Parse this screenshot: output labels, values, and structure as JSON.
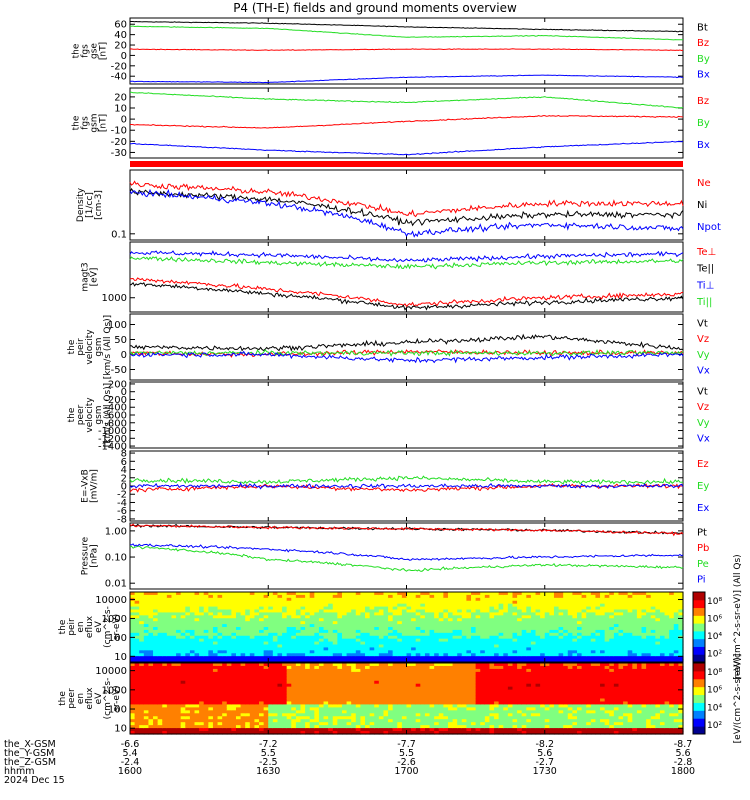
{
  "title": "P4 (TH-E) fields and ground moments overview",
  "colors": {
    "black": "#000000",
    "red": "#ff0000",
    "green": "#22dd22",
    "blue": "#0000ff"
  },
  "chart_data": [
    {
      "type": "line",
      "ylabel": [
        "the",
        "fgs",
        "gse",
        "[nT]"
      ],
      "ylim": [
        -55,
        72
      ],
      "yticks": [
        "60",
        "40",
        "20",
        "0",
        "-20",
        "-40"
      ],
      "series": [
        {
          "name": "Bt",
          "color": "#000000",
          "x": [
            1600,
            1630,
            1700,
            1730,
            1800
          ],
          "values": [
            65,
            62,
            55,
            50,
            46
          ]
        },
        {
          "name": "Bz",
          "color": "#ff0000",
          "x": [
            1600,
            1630,
            1700,
            1730,
            1800
          ],
          "values": [
            12,
            10,
            12,
            12,
            10
          ]
        },
        {
          "name": "By",
          "color": "#22dd22",
          "x": [
            1600,
            1630,
            1700,
            1730,
            1800
          ],
          "values": [
            56,
            52,
            35,
            38,
            30
          ]
        },
        {
          "name": "Bx",
          "color": "#0000ff",
          "x": [
            1600,
            1630,
            1700,
            1730,
            1800
          ],
          "values": [
            -50,
            -52,
            -42,
            -38,
            -42
          ]
        }
      ]
    },
    {
      "type": "line",
      "ylabel": [
        "the",
        "fgs",
        "gsm",
        "[nT]"
      ],
      "ylim": [
        -35,
        28
      ],
      "yticks": [
        "20",
        "10",
        "0",
        "-10",
        "-20",
        "-30"
      ],
      "series": [
        {
          "name": "Bz",
          "color": "#ff0000",
          "x": [
            1600,
            1630,
            1700,
            1730,
            1800
          ],
          "values": [
            -5,
            -8,
            -2,
            3,
            2
          ]
        },
        {
          "name": "By",
          "color": "#22dd22",
          "x": [
            1600,
            1630,
            1700,
            1730,
            1800
          ],
          "values": [
            24,
            18,
            15,
            20,
            10
          ]
        },
        {
          "name": "Bx",
          "color": "#0000ff",
          "x": [
            1600,
            1630,
            1700,
            1730,
            1800
          ],
          "values": [
            -22,
            -28,
            -32,
            -25,
            -20
          ]
        }
      ]
    },
    {
      "type": "line",
      "ylabel": [
        "Density",
        "[1/cc]",
        "[cm-3]"
      ],
      "yscale": "log",
      "ylim": [
        0.08,
        1.0
      ],
      "yticks": [
        "0.1"
      ],
      "series": [
        {
          "name": "Ne",
          "color": "#ff0000",
          "x": [
            1600,
            1630,
            1700,
            1730,
            1800
          ],
          "values": [
            0.6,
            0.45,
            0.2,
            0.3,
            0.3
          ]
        },
        {
          "name": "Ni",
          "color": "#000000",
          "x": [
            1600,
            1630,
            1700,
            1730,
            1800
          ],
          "values": [
            0.45,
            0.35,
            0.15,
            0.2,
            0.2
          ]
        },
        {
          "name": "Npot",
          "color": "#0000ff",
          "x": [
            1600,
            1630,
            1700,
            1730,
            1800
          ],
          "values": [
            0.45,
            0.3,
            0.1,
            0.14,
            0.12
          ]
        }
      ]
    },
    {
      "type": "line",
      "ylabel": [
        "magt3",
        "[eV]"
      ],
      "yscale": "log",
      "ylim": [
        500,
        15000
      ],
      "yticks": [
        "1000"
      ],
      "series": [
        {
          "name": "Te⊥",
          "color": "#ff0000",
          "x": [
            1600,
            1630,
            1700,
            1730,
            1800
          ],
          "values": [
            2500,
            1500,
            700,
            1000,
            1200
          ]
        },
        {
          "name": "Te||",
          "color": "#000000",
          "x": [
            1600,
            1630,
            1700,
            1730,
            1800
          ],
          "values": [
            2000,
            1200,
            600,
            800,
            1000
          ]
        },
        {
          "name": "Ti⊥",
          "color": "#0000ff",
          "x": [
            1600,
            1630,
            1700,
            1730,
            1800
          ],
          "values": [
            9000,
            8000,
            6000,
            7500,
            8500
          ]
        },
        {
          "name": "Ti||",
          "color": "#22dd22",
          "x": [
            1600,
            1630,
            1700,
            1730,
            1800
          ],
          "values": [
            7000,
            5500,
            4500,
            5500,
            6000
          ]
        }
      ]
    },
    {
      "type": "line",
      "ylabel": [
        "the",
        "peir",
        "velocity",
        "gsm",
        "[km/s (All Qs)]"
      ],
      "ylim": [
        -85,
        135
      ],
      "yticks": [
        "100",
        "50",
        "0",
        "-50"
      ],
      "series": [
        {
          "name": "Vt",
          "color": "#000000",
          "x": [
            1600,
            1630,
            1700,
            1730,
            1800
          ],
          "values": [
            25,
            20,
            40,
            60,
            20
          ]
        },
        {
          "name": "Vz",
          "color": "#ff0000",
          "x": [
            1600,
            1630,
            1700,
            1730,
            1800
          ],
          "values": [
            5,
            0,
            10,
            5,
            5
          ]
        },
        {
          "name": "Vy",
          "color": "#22dd22",
          "x": [
            1600,
            1630,
            1700,
            1730,
            1800
          ],
          "values": [
            5,
            5,
            5,
            5,
            5
          ]
        },
        {
          "name": "Vx",
          "color": "#0000ff",
          "x": [
            1600,
            1630,
            1700,
            1730,
            1800
          ],
          "values": [
            0,
            0,
            -20,
            -10,
            0
          ]
        }
      ]
    },
    {
      "type": "line",
      "ylabel": [
        "the",
        "peer",
        "velocity",
        "gsm",
        "[km/s (All Qs)]"
      ],
      "ylim": [
        -1450,
        250
      ],
      "yticks": [
        "200",
        "0",
        "-200",
        "-400",
        "-600",
        "-800",
        "-1000",
        "-1200",
        "-1400"
      ],
      "series": [
        {
          "name": "Vt",
          "color": "#000000",
          "x": [],
          "values": []
        },
        {
          "name": "Vz",
          "color": "#ff0000",
          "x": [],
          "values": []
        },
        {
          "name": "Vy",
          "color": "#22dd22",
          "x": [],
          "values": []
        },
        {
          "name": "Vx",
          "color": "#0000ff",
          "x": [],
          "values": []
        }
      ]
    },
    {
      "type": "line",
      "ylabel": [
        "E=-VxB",
        "[mV/m]"
      ],
      "ylim": [
        -8.5,
        8.5
      ],
      "yticks": [
        "8",
        "6",
        "4",
        "2",
        "0",
        "-2",
        "-4",
        "-6",
        "-8"
      ],
      "series": [
        {
          "name": "Ez",
          "color": "#ff0000",
          "x": [
            1600,
            1630,
            1700,
            1730,
            1800
          ],
          "values": [
            -1,
            0,
            -1,
            0,
            0
          ]
        },
        {
          "name": "Ey",
          "color": "#22dd22",
          "x": [
            1600,
            1630,
            1700,
            1730,
            1800
          ],
          "values": [
            1.5,
            1,
            2,
            1,
            1
          ]
        },
        {
          "name": "Ex",
          "color": "#0000ff",
          "x": [
            1600,
            1630,
            1700,
            1730,
            1800
          ],
          "values": [
            0,
            0,
            0,
            0,
            0
          ]
        }
      ]
    },
    {
      "type": "line",
      "ylabel": [
        "Pressure",
        "[nPa]"
      ],
      "yscale": "log",
      "ylim": [
        0.006,
        2.0
      ],
      "yticks": [
        "1.00",
        "0.10",
        "0.01"
      ],
      "series": [
        {
          "name": "Pt",
          "color": "#000000",
          "x": [
            1600,
            1630,
            1700,
            1730,
            1800
          ],
          "values": [
            1.6,
            1.35,
            1.2,
            1.05,
            0.8
          ]
        },
        {
          "name": "Pb",
          "color": "#ff0000",
          "x": [
            1600,
            1630,
            1700,
            1730,
            1800
          ],
          "values": [
            1.6,
            1.35,
            1.2,
            1.05,
            0.78
          ]
        },
        {
          "name": "Pe",
          "color": "#22dd22",
          "x": [
            1600,
            1630,
            1700,
            1730,
            1800
          ],
          "values": [
            0.25,
            0.08,
            0.03,
            0.05,
            0.04
          ]
        },
        {
          "name": "Pi",
          "color": "#0000ff",
          "x": [
            1600,
            1630,
            1700,
            1730,
            1800
          ],
          "values": [
            0.3,
            0.2,
            0.08,
            0.1,
            0.12
          ]
        }
      ]
    },
    {
      "type": "heatmap",
      "ylabel": [
        "the",
        "peir",
        "en",
        "eflux",
        "eV",
        "(cm^2-s-",
        "sr-eV)"
      ],
      "yscale": "log",
      "ylim": [
        5,
        25000
      ],
      "yticks": [
        "10000",
        "1000",
        "100",
        "10"
      ],
      "colorbar": {
        "label": "[eV/(cm^2-s-sr-eV)] (All Qs)",
        "ticks": [
          "10⁸",
          "10⁶",
          "10⁴",
          "10²"
        ]
      }
    },
    {
      "type": "heatmap",
      "ylabel": [
        "the",
        "peer",
        "en",
        "eflux",
        "eV",
        "(cm^2-s-",
        "sr-eV)"
      ],
      "yscale": "log",
      "ylim": [
        5,
        25000
      ],
      "yticks": [
        "10000",
        "1000",
        "100",
        "10"
      ],
      "colorbar": {
        "label": "[eV/(cm^2-s-sr-eV)]",
        "ticks": [
          "10⁸",
          "10⁶",
          "10⁴",
          "10²"
        ]
      }
    }
  ],
  "xaxis": {
    "rows": [
      {
        "label": "the_X-GSM",
        "values": [
          "-6.6",
          "-7.2",
          "-7.7",
          "-8.2",
          "-8.7"
        ]
      },
      {
        "label": "the_Y-GSM",
        "values": [
          "5.4",
          "5.5",
          "5.5",
          "5.6",
          "5.6"
        ]
      },
      {
        "label": "the_Z-GSM",
        "values": [
          "-2.4",
          "-2.5",
          "-2.6",
          "-2.7",
          "-2.8"
        ]
      },
      {
        "label": "hhmm",
        "values": [
          "1600",
          "1630",
          "1700",
          "1730",
          "1800"
        ]
      }
    ],
    "date": "2024 Dec 15",
    "tick_minutes": [
      0,
      30,
      60,
      90,
      120
    ]
  }
}
